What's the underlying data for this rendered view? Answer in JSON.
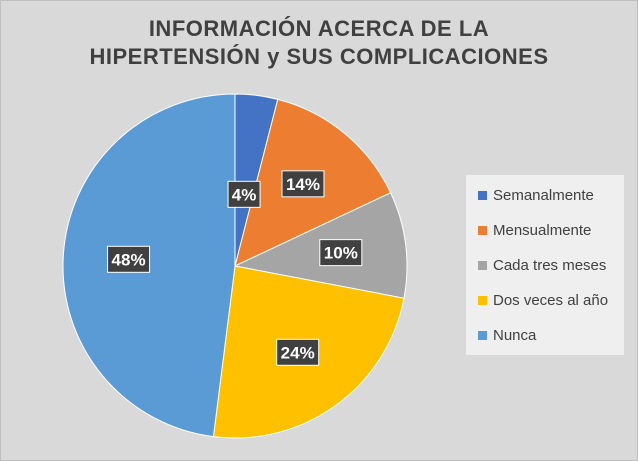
{
  "chart_data": {
    "type": "pie",
    "title": [
      "INFORMACIÓN ACERCA DE LA",
      "HIPERTENSIÓN y SUS COMPLICACIONES"
    ],
    "slices": [
      {
        "label": "Semanalmente",
        "value": 4,
        "display": "4%",
        "color": "#4472c4"
      },
      {
        "label": "Mensualmente",
        "value": 14,
        "display": "14%",
        "color": "#ed7d31"
      },
      {
        "label": "Cada tres meses",
        "value": 10,
        "display": "10%",
        "color": "#a5a5a5"
      },
      {
        "label": "Dos veces al año",
        "value": 24,
        "display": "24%",
        "color": "#ffc000"
      },
      {
        "label": "Nunca",
        "value": 48,
        "display": "48%",
        "color": "#5b9bd5"
      }
    ],
    "legend_position": "right"
  }
}
